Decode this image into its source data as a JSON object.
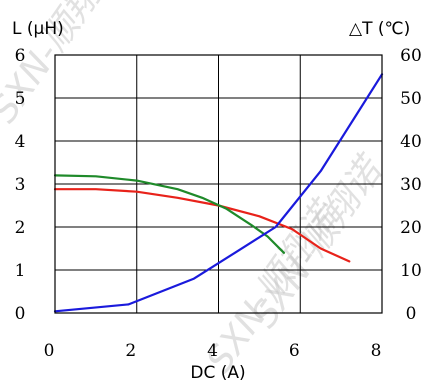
{
  "chart_data": {
    "type": "line",
    "x_axis": {
      "label": "DC (A)",
      "range": [
        0,
        8
      ],
      "ticks": [
        0,
        2,
        4,
        6,
        8
      ]
    },
    "y_left": {
      "label": "L (μH)",
      "range": [
        0,
        6
      ],
      "ticks": [
        0,
        1,
        2,
        3,
        4,
        5,
        6
      ]
    },
    "y_right": {
      "label": "△T (℃)",
      "range": [
        0,
        60
      ],
      "ticks": [
        0,
        10,
        20,
        30,
        40,
        50,
        60
      ]
    },
    "grid": true,
    "series": [
      {
        "color": "#e8221a",
        "axis": "left",
        "points": [
          [
            0,
            2.88
          ],
          [
            1.0,
            2.88
          ],
          [
            2.0,
            2.82
          ],
          [
            3.0,
            2.68
          ],
          [
            4.0,
            2.5
          ],
          [
            5.0,
            2.25
          ],
          [
            5.8,
            1.95
          ],
          [
            6.5,
            1.5
          ],
          [
            7.2,
            1.2
          ]
        ]
      },
      {
        "color": "#1f8a2a",
        "axis": "left",
        "points": [
          [
            0,
            3.2
          ],
          [
            1.0,
            3.18
          ],
          [
            2.0,
            3.08
          ],
          [
            3.0,
            2.88
          ],
          [
            3.6,
            2.68
          ],
          [
            4.2,
            2.42
          ],
          [
            4.8,
            2.05
          ],
          [
            5.2,
            1.78
          ],
          [
            5.6,
            1.4
          ]
        ]
      },
      {
        "color": "#1a1adc",
        "axis": "right",
        "points": [
          [
            0,
            0.4
          ],
          [
            1.8,
            2
          ],
          [
            3.4,
            8
          ],
          [
            4.4,
            14
          ],
          [
            5.4,
            20
          ],
          [
            6.5,
            33
          ],
          [
            7.3,
            45
          ],
          [
            8.0,
            55.5
          ]
        ]
      }
    ]
  },
  "watermark": "SXN-顺翔诺"
}
